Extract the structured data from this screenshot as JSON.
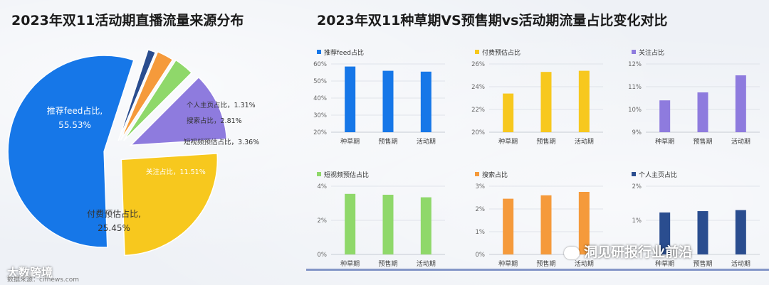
{
  "titles": {
    "left": "2023年双11活动期直播流量来源分布",
    "right": "2023年双11种草期VS预售期vs活动期流量占比变化对比"
  },
  "chart_data": [
    {
      "type": "pie",
      "title": "2023年双11活动期直播流量来源分布",
      "slices": [
        {
          "label": "推荐feed占比",
          "value": 55.53,
          "display": "55.53%",
          "color": "#1677e8"
        },
        {
          "label": "付费预估占比",
          "value": 25.45,
          "display": "25.45%",
          "color": "#f7c81e"
        },
        {
          "label": "关注占比",
          "value": 11.51,
          "display": "11.51%",
          "color": "#8e7bde"
        },
        {
          "label": "短视频预估占比",
          "value": 3.36,
          "display": "3.36%",
          "color": "#8fd86a"
        },
        {
          "label": "搜索占比",
          "value": 2.81,
          "display": "2.81%",
          "color": "#f59a3b"
        },
        {
          "label": "个人主页占比",
          "value": 1.31,
          "display": "1.31%",
          "color": "#2a4d8f"
        }
      ]
    },
    {
      "type": "bar",
      "legend": "推荐feed占比",
      "color": "#1677e8",
      "categories": [
        "种草期",
        "预售期",
        "活动期"
      ],
      "values": [
        58.5,
        56,
        55.5
      ],
      "ylim": [
        20,
        60
      ],
      "yticks": [
        20,
        30,
        40,
        50,
        60
      ],
      "ytick_labels": [
        "20%",
        "30%",
        "40%",
        "50%",
        "60%"
      ]
    },
    {
      "type": "bar",
      "legend": "付费预估占比",
      "color": "#f7c81e",
      "categories": [
        "种草期",
        "预售期",
        "活动期"
      ],
      "values": [
        23.4,
        25.3,
        25.4
      ],
      "ylim": [
        20,
        26
      ],
      "yticks": [
        20,
        22,
        24,
        26
      ],
      "ytick_labels": [
        "20%",
        "22%",
        "24%",
        "26%"
      ]
    },
    {
      "type": "bar",
      "legend": "关注占比",
      "color": "#8e7bde",
      "categories": [
        "种草期",
        "预售期",
        "活动期"
      ],
      "values": [
        10.4,
        10.75,
        11.5
      ],
      "ylim": [
        9,
        12
      ],
      "yticks": [
        9,
        10,
        11,
        12
      ],
      "ytick_labels": [
        "9%",
        "10%",
        "11%",
        "12%"
      ]
    },
    {
      "type": "bar",
      "legend": "短视频预估占比",
      "color": "#8fd86a",
      "categories": [
        "种草期",
        "预售期",
        "活动期"
      ],
      "values": [
        3.55,
        3.5,
        3.35
      ],
      "ylim": [
        0,
        4
      ],
      "yticks": [
        0,
        2,
        4
      ],
      "ytick_labels": [
        "0%",
        "2%",
        "4%"
      ]
    },
    {
      "type": "bar",
      "legend": "搜索占比",
      "color": "#f59a3b",
      "categories": [
        "种草期",
        "预售期",
        "活动期"
      ],
      "values": [
        2.45,
        2.6,
        2.75
      ],
      "ylim": [
        0,
        3
      ],
      "yticks": [
        0,
        1,
        2,
        3
      ],
      "ytick_labels": [
        "0%",
        "1%",
        "2%",
        "3%"
      ]
    },
    {
      "type": "bar",
      "legend": "个人主页占比",
      "color": "#2a4d8f",
      "categories": [
        "种草期",
        "预售期",
        "活动期"
      ],
      "values": [
        1.23,
        1.27,
        1.3
      ],
      "ylim": [
        0,
        2
      ],
      "yticks": [
        1,
        2
      ],
      "ytick_labels": [
        "1%",
        "2%"
      ]
    }
  ],
  "footer": {
    "logo": "大数跨境",
    "source": "数据来源：cifnews.com"
  },
  "watermark": "洞见研报行业前沿"
}
